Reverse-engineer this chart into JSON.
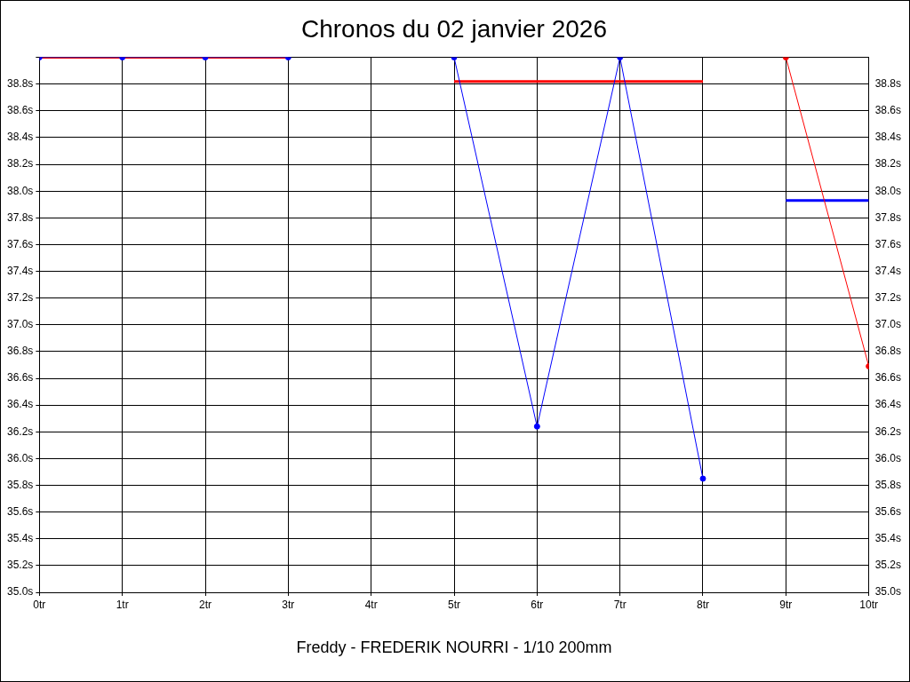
{
  "chart_data": {
    "type": "line",
    "title": "Chronos du 02 janvier 2026",
    "xlabel": "Freddy - FREDERIK NOURRI - 1/10 200mm",
    "xlim": [
      0,
      10
    ],
    "xticks": [
      {
        "value": 0,
        "label": "0tr"
      },
      {
        "value": 1,
        "label": "1tr"
      },
      {
        "value": 2,
        "label": "2tr"
      },
      {
        "value": 3,
        "label": "3tr"
      },
      {
        "value": 4,
        "label": "4tr"
      },
      {
        "value": 5,
        "label": "5tr"
      },
      {
        "value": 6,
        "label": "6tr"
      },
      {
        "value": 7,
        "label": "7tr"
      },
      {
        "value": 8,
        "label": "8tr"
      },
      {
        "value": 9,
        "label": "9tr"
      },
      {
        "value": 10,
        "label": "10tr"
      }
    ],
    "ylim": [
      35,
      39
    ],
    "yticks": [
      {
        "value": 35.0,
        "label": "35.0s"
      },
      {
        "value": 35.2,
        "label": "35.2s"
      },
      {
        "value": 35.4,
        "label": "35.4s"
      },
      {
        "value": 35.6,
        "label": "35.6s"
      },
      {
        "value": 35.8,
        "label": "35.8s"
      },
      {
        "value": 36.0,
        "label": "36.0s"
      },
      {
        "value": 36.2,
        "label": "36.2s"
      },
      {
        "value": 36.4,
        "label": "36.4s"
      },
      {
        "value": 36.6,
        "label": "36.6s"
      },
      {
        "value": 36.8,
        "label": "36.8s"
      },
      {
        "value": 37.0,
        "label": "37.0s"
      },
      {
        "value": 37.2,
        "label": "37.2s"
      },
      {
        "value": 37.4,
        "label": "37.4s"
      },
      {
        "value": 37.6,
        "label": "37.6s"
      },
      {
        "value": 37.8,
        "label": "37.8s"
      },
      {
        "value": 38.0,
        "label": "38.0s"
      },
      {
        "value": 38.2,
        "label": "38.2s"
      },
      {
        "value": 38.4,
        "label": "38.4s"
      },
      {
        "value": 38.6,
        "label": "38.6s"
      },
      {
        "value": 38.8,
        "label": "38.8s"
      },
      {
        "value": 39.0,
        "label": null
      }
    ],
    "y2lim": [
      35,
      39
    ],
    "y2ticks": [
      {
        "value": 35.0,
        "label": "35.0s"
      },
      {
        "value": 35.2,
        "label": "35.2s"
      },
      {
        "value": 35.4,
        "label": "35.4s"
      },
      {
        "value": 35.6,
        "label": "35.6s"
      },
      {
        "value": 35.8,
        "label": "35.8s"
      },
      {
        "value": 36.0,
        "label": "36.0s"
      },
      {
        "value": 36.2,
        "label": "36.2s"
      },
      {
        "value": 36.4,
        "label": "36.4s"
      },
      {
        "value": 36.6,
        "label": "36.6s"
      },
      {
        "value": 36.8,
        "label": "36.8s"
      },
      {
        "value": 37.0,
        "label": "37.0s"
      },
      {
        "value": 37.2,
        "label": "37.2s"
      },
      {
        "value": 37.4,
        "label": "37.4s"
      },
      {
        "value": 37.6,
        "label": "37.6s"
      },
      {
        "value": 37.8,
        "label": "37.8s"
      },
      {
        "value": 38.0,
        "label": "38.0s"
      },
      {
        "value": 38.2,
        "label": "38.2s"
      },
      {
        "value": 38.4,
        "label": "38.4s"
      },
      {
        "value": 38.6,
        "label": "38.6s"
      },
      {
        "value": 38.8,
        "label": "38.8s"
      },
      {
        "value": 39.0,
        "label": null
      }
    ],
    "grid": true,
    "legend": false,
    "marker": "circle",
    "line_style": "solid",
    "series": [
      {
        "color": "#0000ff",
        "x": [
          0,
          1,
          2,
          3
        ],
        "values": [
          39.0,
          39.0,
          39.0,
          39.0
        ]
      },
      {
        "color": "#0000ff",
        "x": [
          5,
          6,
          7,
          8
        ],
        "values": [
          39.0,
          36.24,
          39.0,
          35.85
        ]
      },
      {
        "color": "#ff0000",
        "x": [
          9,
          10
        ],
        "values": [
          39.0,
          36.69
        ]
      },
      {
        "color": "#ff0000",
        "marker": "none",
        "x": [
          0,
          3
        ],
        "values": [
          39.0,
          39.0
        ]
      },
      {
        "color": "#ff0000",
        "marker": "none",
        "x": [
          5,
          8
        ],
        "values": [
          38.82,
          38.82
        ]
      },
      {
        "color": "#0000ff",
        "marker": "none",
        "x": [
          9,
          10
        ],
        "values": [
          37.93,
          37.93
        ]
      }
    ]
  }
}
